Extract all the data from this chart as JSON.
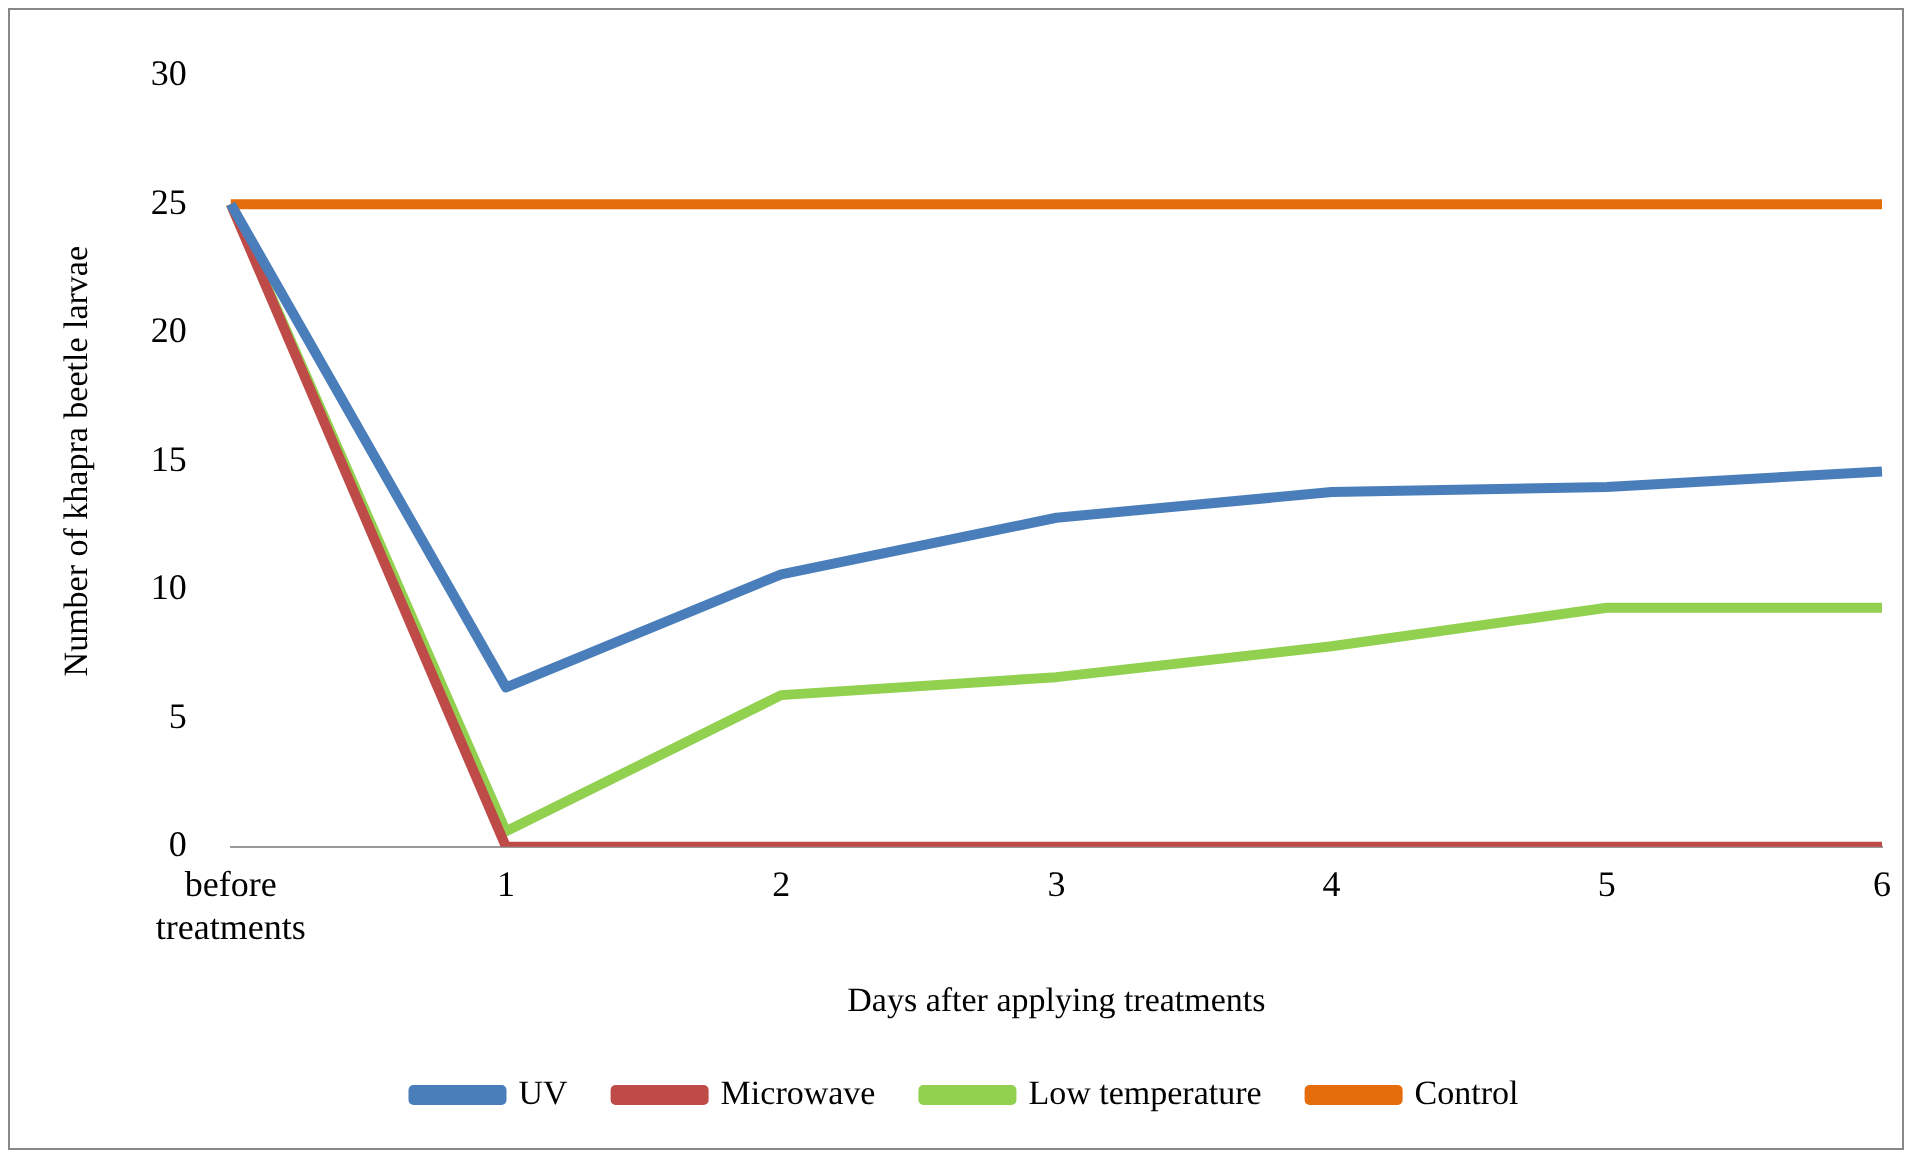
{
  "chart_data": {
    "type": "line",
    "xlabel": "Days after applying treatments",
    "ylabel": "Number of khapra beetle larvae",
    "categories": [
      "before treatments",
      "1",
      "2",
      "3",
      "4",
      "5",
      "6"
    ],
    "series": [
      {
        "name": "UV",
        "color": "#4a7ebb",
        "values": [
          25,
          6.2,
          10.6,
          12.8,
          13.8,
          14.0,
          14.6
        ]
      },
      {
        "name": "Microwave",
        "color": "#be4b48",
        "values": [
          25,
          0,
          0,
          0,
          0,
          0,
          0
        ]
      },
      {
        "name": "Low temperature",
        "color": "#92d050",
        "values": [
          25,
          0.6,
          5.9,
          6.6,
          7.8,
          9.3,
          9.3
        ]
      },
      {
        "name": "Control",
        "color": "#e46c0a",
        "values": [
          25,
          25,
          25,
          25,
          25,
          25,
          25
        ]
      }
    ],
    "ylim": [
      0,
      30
    ],
    "yticks": [
      0,
      5,
      10,
      15,
      20,
      25,
      30
    ],
    "grid": false,
    "legend": "bottom",
    "marker": "none",
    "line_style": "solid"
  }
}
